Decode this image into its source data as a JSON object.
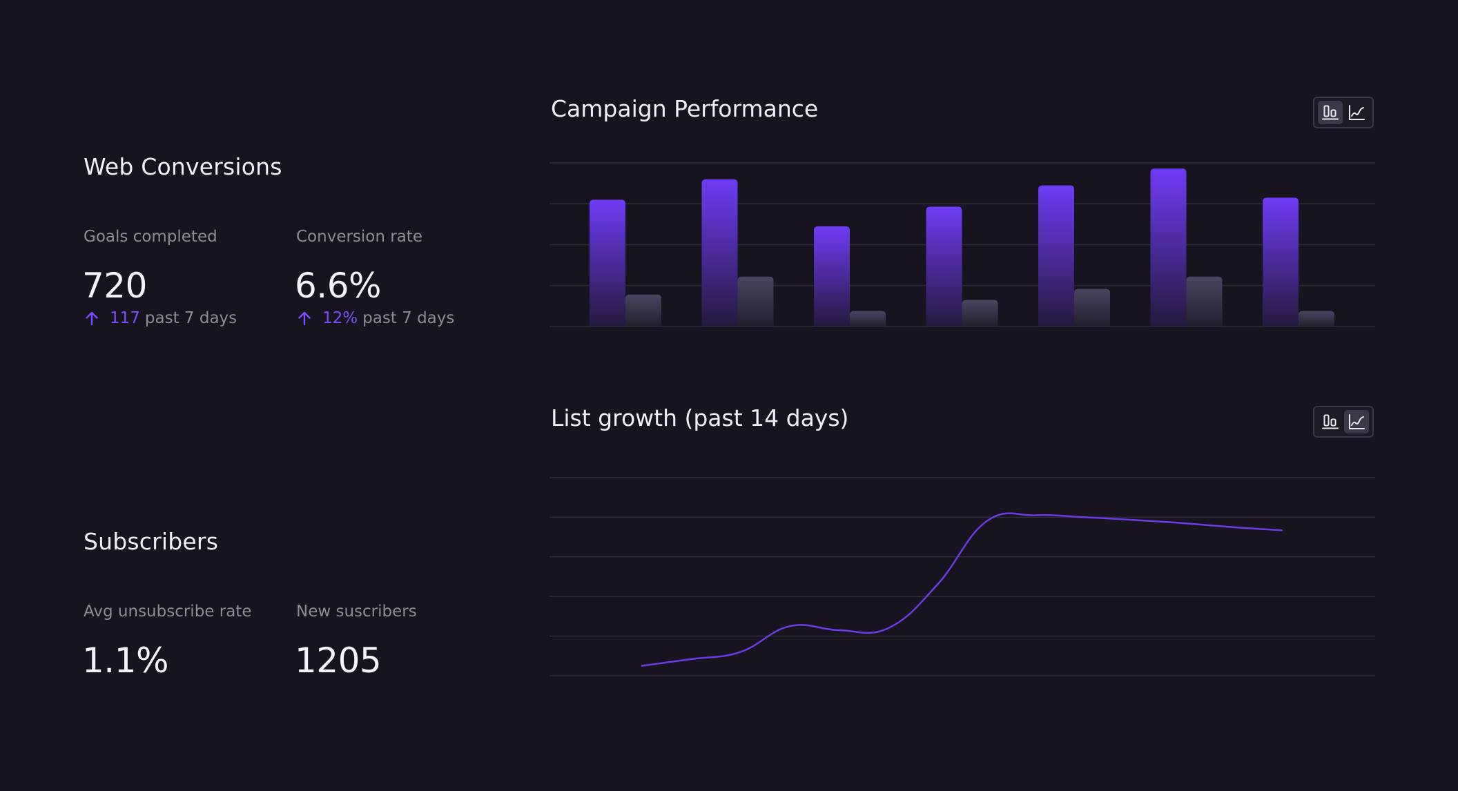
{
  "colors": {
    "background": "#17141f",
    "accent": "#7c4dff",
    "bar_primary_top": "#6f3bf5",
    "bar_secondary_top": "#4b4560",
    "gridline": "#2e2b38",
    "text_primary": "#f1eff6",
    "text_muted": "#8e8a98"
  },
  "web_conversions": {
    "title": "Web Conversions",
    "goals": {
      "label": "Goals completed",
      "value": "720",
      "delta_value": "117",
      "delta_suffix": "past 7 days",
      "delta_icon": "arrow-up-icon"
    },
    "conversion_rate": {
      "label": "Conversion rate",
      "value": "6.6%",
      "delta_value": "12%",
      "delta_suffix": "past 7 days",
      "delta_icon": "arrow-up-icon"
    }
  },
  "subscribers": {
    "title": "Subscribers",
    "unsubscribe": {
      "label": "Avg unsubscribe rate",
      "value": "1.1%"
    },
    "new": {
      "label": "New suscribers",
      "value": "1205"
    }
  },
  "campaign_chart": {
    "title": "Campaign Performance",
    "toggle": {
      "active": "bar",
      "icons": [
        "bar-chart-icon",
        "line-chart-icon"
      ]
    }
  },
  "growth_chart": {
    "title": "List growth (past 14 days)",
    "toggle": {
      "active": "line",
      "icons": [
        "bar-chart-icon",
        "line-chart-icon"
      ]
    }
  },
  "chart_data": [
    {
      "type": "bar",
      "title": "Campaign Performance",
      "categories": [
        "",
        "",
        "",
        "",
        "",
        "",
        ""
      ],
      "ylim": [
        0,
        4
      ],
      "grid": true,
      "legend": "none",
      "series": [
        {
          "values": [
            3.1,
            3.6,
            2.45,
            2.93,
            3.45,
            3.86,
            3.15
          ]
        },
        {
          "values": [
            0.78,
            1.22,
            0.38,
            0.65,
            0.92,
            1.22,
            0.38
          ]
        }
      ]
    },
    {
      "type": "line",
      "title": "List growth (past 14 days)",
      "x": [
        1,
        2,
        3,
        4,
        5,
        6,
        7,
        8,
        9,
        10,
        11,
        12,
        13,
        14
      ],
      "ylim": [
        0,
        5
      ],
      "grid": true,
      "legend": "none",
      "series": [
        {
          "values": [
            0.25,
            0.42,
            0.6,
            1.25,
            1.15,
            1.2,
            2.3,
            3.9,
            4.05,
            4.0,
            3.93,
            3.85,
            3.75,
            3.67
          ]
        }
      ]
    }
  ]
}
